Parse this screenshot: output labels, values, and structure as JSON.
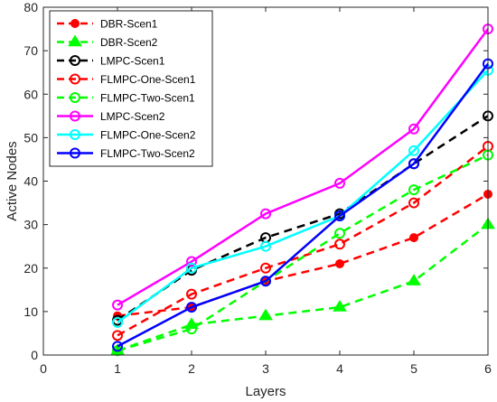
{
  "chart_data": {
    "type": "line",
    "xlabel": "Layers",
    "ylabel": "Active Nodes",
    "xlim": [
      0,
      6
    ],
    "ylim": [
      0,
      80
    ],
    "xticks": [
      0,
      1,
      2,
      3,
      4,
      5,
      6
    ],
    "yticks": [
      0,
      10,
      20,
      30,
      40,
      50,
      60,
      70,
      80
    ],
    "x": [
      1,
      2,
      3,
      4,
      5,
      6
    ],
    "grid": false,
    "legend_position": "top-left",
    "series": [
      {
        "name": "DBR-Scen1",
        "color": "#ff0000",
        "dash": "dashed",
        "marker": "filled-circle",
        "values": [
          9,
          11,
          17,
          21,
          27,
          37
        ]
      },
      {
        "name": "DBR-Scen2",
        "color": "#00ff00",
        "dash": "dashed",
        "marker": "filled-triangle",
        "values": [
          1,
          7,
          9,
          11,
          17,
          30
        ]
      },
      {
        "name": "LMPC-Scen1",
        "color": "#000000",
        "dash": "dashed",
        "marker": "open-circle",
        "values": [
          8,
          19.5,
          27,
          32.5,
          44,
          55
        ]
      },
      {
        "name": "FLMPC-One-Scen1",
        "color": "#ff0000",
        "dash": "dashed",
        "marker": "open-circle",
        "values": [
          4.5,
          14,
          20,
          25.5,
          35,
          48
        ]
      },
      {
        "name": "FLMPC-Two-Scen1",
        "color": "#00ff00",
        "dash": "dashed",
        "marker": "open-circle",
        "values": [
          1,
          6,
          17,
          28,
          38,
          46
        ]
      },
      {
        "name": "LMPC-Scen2",
        "color": "#ff00ff",
        "dash": "solid",
        "marker": "open-circle",
        "values": [
          11.5,
          21.5,
          32.5,
          39.5,
          52,
          75
        ]
      },
      {
        "name": "FLMPC-One-Scen2",
        "color": "#00ffff",
        "dash": "solid",
        "marker": "open-circle",
        "values": [
          7.5,
          20,
          25,
          32,
          47,
          65.5
        ]
      },
      {
        "name": "FLMPC-Two-Scen2",
        "color": "#0000ff",
        "dash": "solid",
        "marker": "open-circle",
        "values": [
          2,
          11,
          17,
          32,
          44,
          67
        ]
      }
    ]
  }
}
